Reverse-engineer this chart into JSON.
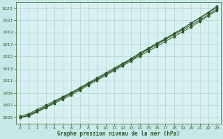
{
  "background_color": "#c8e8e8",
  "plot_bg_color": "#d8f0f0",
  "grid_color": "#b0d4d4",
  "line_color": "#2d5a27",
  "marker_color": "#2d5a27",
  "xlabel": "Graphe pression niveau de la mer (hPa)",
  "ylim": [
    1004,
    1024
  ],
  "xlim": [
    -0.5,
    23.5
  ],
  "yticks": [
    1005,
    1007,
    1009,
    1011,
    1013,
    1015,
    1017,
    1019,
    1021,
    1023
  ],
  "xticks": [
    0,
    1,
    2,
    3,
    4,
    5,
    6,
    7,
    8,
    9,
    10,
    11,
    12,
    13,
    14,
    15,
    16,
    17,
    18,
    19,
    20,
    21,
    22,
    23
  ],
  "hours": [
    0,
    1,
    2,
    3,
    4,
    5,
    6,
    7,
    8,
    9,
    10,
    11,
    12,
    13,
    14,
    15,
    16,
    17,
    18,
    19,
    20,
    21,
    22,
    23
  ],
  "line1": [
    1005.2,
    1005.6,
    1006.3,
    1007.0,
    1007.7,
    1008.4,
    1009.1,
    1009.9,
    1010.7,
    1011.5,
    1012.3,
    1013.1,
    1013.9,
    1014.7,
    1015.6,
    1016.4,
    1017.2,
    1018.0,
    1018.8,
    1019.6,
    1020.5,
    1021.3,
    1022.2,
    1023.1
  ],
  "line2": [
    1005.0,
    1005.4,
    1006.1,
    1006.8,
    1007.5,
    1008.2,
    1008.9,
    1009.7,
    1010.5,
    1011.3,
    1012.1,
    1012.9,
    1013.7,
    1014.5,
    1015.3,
    1016.2,
    1017.0,
    1017.8,
    1018.6,
    1019.4,
    1020.2,
    1021.0,
    1021.9,
    1022.8
  ],
  "line3": [
    1005.0,
    1005.3,
    1006.0,
    1006.7,
    1007.5,
    1008.3,
    1009.0,
    1009.8,
    1010.6,
    1011.3,
    1012.1,
    1012.9,
    1013.8,
    1014.6,
    1015.5,
    1016.3,
    1017.1,
    1017.9,
    1018.8,
    1019.6,
    1020.5,
    1021.4,
    1022.3,
    1023.3
  ],
  "line4": [
    1005.0,
    1005.2,
    1005.9,
    1006.6,
    1007.3,
    1008.0,
    1008.7,
    1009.5,
    1010.3,
    1011.1,
    1011.9,
    1012.7,
    1013.5,
    1014.3,
    1015.1,
    1015.9,
    1016.7,
    1017.5,
    1018.3,
    1019.1,
    1019.9,
    1020.8,
    1021.7,
    1022.6
  ]
}
